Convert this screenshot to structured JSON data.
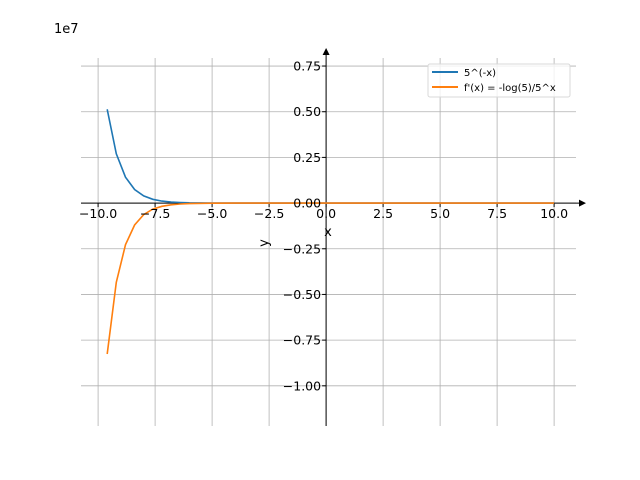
{
  "chart_data": {
    "type": "line",
    "title": "",
    "xlabel": "x",
    "ylabel": "y",
    "y_offset_label": "1e7",
    "xlim": [
      -10.75,
      10.96
    ],
    "ylim": [
      -1.22,
      0.794
    ],
    "y_unit_scale": 10000000,
    "grid": true,
    "legend_position": "top-right",
    "x_ticks": [
      -10,
      -7.5,
      -5,
      -2.5,
      0,
      2.5,
      5,
      7.5,
      10
    ],
    "x_tick_labels": [
      "−10.0",
      "−7.5",
      "−5.0",
      "−2.5",
      "0.0",
      "2.5",
      "5.0",
      "7.5",
      "10.0"
    ],
    "y_ticks": [
      0.75,
      0.5,
      0.25,
      0,
      -0.25,
      -0.5,
      -0.75,
      -1.0
    ],
    "y_tick_labels": [
      "0.75",
      "0.50",
      "0.25",
      "0.00",
      "−0.25",
      "−0.50",
      "−0.75",
      "−1.00"
    ],
    "x": [
      -9.6,
      -9.2,
      -8.8,
      -8.4,
      -8.0,
      -7.6,
      -7.2,
      -6.8,
      -6.4,
      -6.0,
      -5.0,
      -4.0,
      0,
      5,
      10
    ],
    "series": [
      {
        "name": "5^(-x)",
        "color": "#1f77b4",
        "values": [
          0.5131,
          0.2695,
          0.1416,
          0.0744,
          0.0391,
          0.0205,
          0.0108,
          0.0057,
          0.003,
          0.0016,
          0.0003,
          0.0001,
          0,
          0,
          0
        ]
      },
      {
        "name": "f'(x) = -log(5)/5^x",
        "color": "#ff7f0e",
        "values": [
          -0.8258,
          -0.4337,
          -0.2279,
          -0.1197,
          -0.0629,
          -0.033,
          -0.0174,
          -0.0092,
          -0.0048,
          -0.0026,
          -0.0005,
          -0.0001,
          0,
          0,
          0
        ]
      }
    ]
  }
}
